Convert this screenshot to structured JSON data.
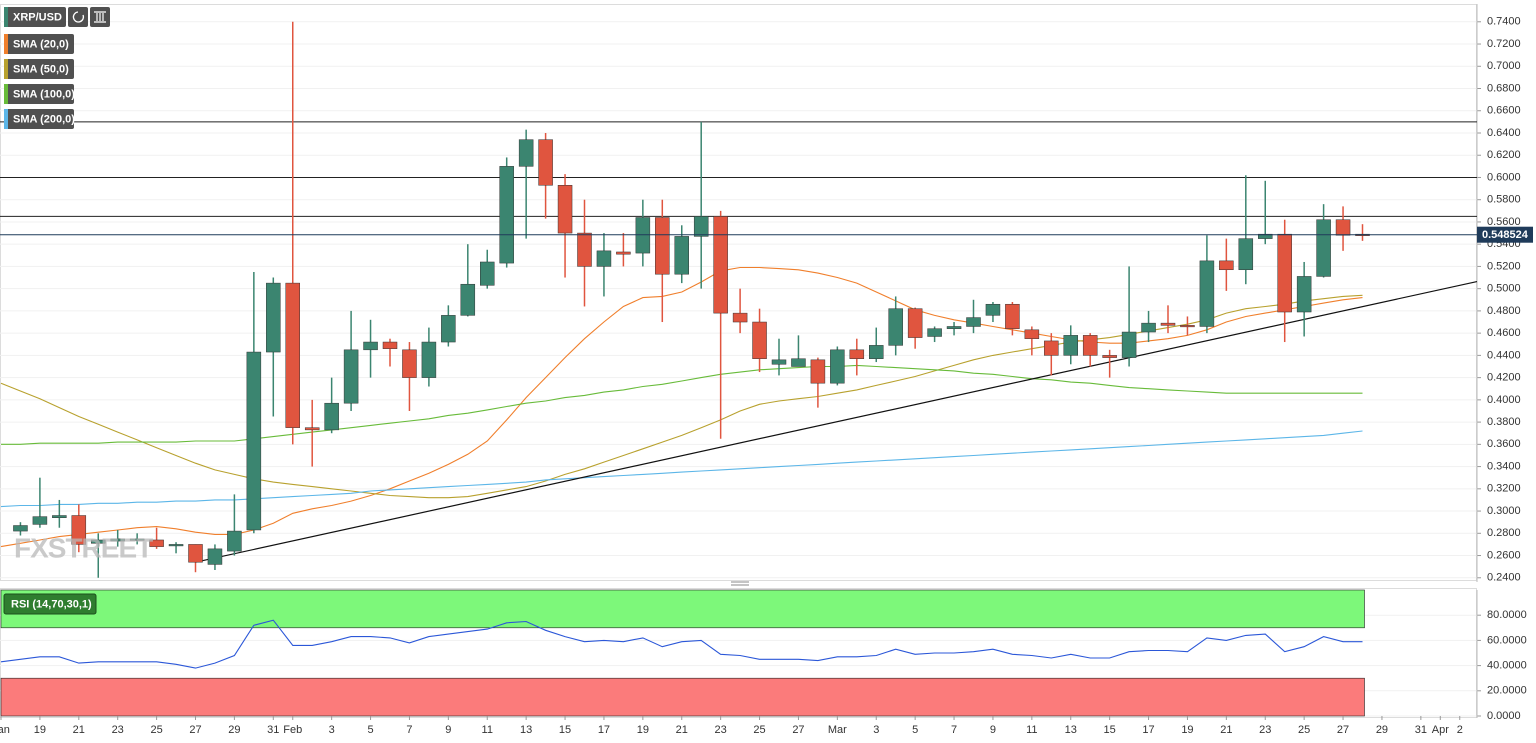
{
  "chart_data": [
    {
      "type": "candlestick",
      "title": "XRP/USD",
      "categories": [
        "Jan",
        null,
        "19",
        null,
        "21",
        null,
        "23",
        null,
        "25",
        null,
        "27",
        null,
        "29",
        null,
        "31",
        "Feb",
        null,
        "3",
        null,
        "5",
        null,
        "7",
        null,
        "9",
        null,
        "11",
        null,
        "13",
        null,
        "15",
        null,
        "17",
        null,
        "19",
        null,
        "21",
        null,
        "23",
        null,
        "25",
        null,
        "27",
        null,
        "Mar",
        null,
        "3",
        null,
        "5",
        null,
        "7",
        null,
        "9",
        null,
        "11",
        null,
        "13",
        null,
        "15",
        null,
        "17",
        null,
        "19",
        null,
        "21",
        null,
        "23",
        null,
        "25",
        null,
        "27",
        null,
        "29",
        null,
        "31",
        "Apr",
        "2"
      ],
      "open": [
        null,
        0.282,
        0.288,
        0.294,
        0.296,
        0.271,
        0.273,
        0.274,
        0.274,
        0.269,
        0.27,
        0.252,
        0.264,
        0.283,
        0.443,
        0.505,
        0.375,
        0.373,
        0.397,
        0.445,
        0.452,
        0.445,
        0.42,
        0.452,
        0.476,
        0.503,
        0.523,
        0.61,
        0.634,
        0.593,
        0.55,
        0.52,
        0.533,
        0.532,
        0.564,
        0.513,
        0.547,
        0.565,
        0.478,
        0.47,
        0.432,
        0.43,
        0.436,
        0.415,
        0.445,
        0.437,
        0.449,
        0.482,
        0.457,
        0.464,
        0.466,
        0.476,
        0.486,
        0.463,
        0.453,
        0.44,
        0.458,
        0.44,
        0.438,
        0.461,
        0.469,
        0.467,
        0.466,
        0.525,
        0.517,
        0.545,
        0.549,
        0.479,
        0.511,
        0.562,
        0.549,
        null,
        null,
        null,
        null,
        null
      ],
      "high": [
        null,
        0.29,
        0.33,
        0.31,
        0.306,
        0.28,
        0.283,
        0.28,
        0.285,
        0.272,
        0.27,
        0.27,
        0.315,
        0.515,
        0.51,
        0.74,
        0.4,
        0.42,
        0.48,
        0.472,
        0.455,
        0.452,
        0.465,
        0.485,
        0.54,
        0.535,
        0.618,
        0.643,
        0.64,
        0.603,
        0.58,
        0.55,
        0.55,
        0.58,
        0.58,
        0.557,
        0.65,
        0.57,
        0.5,
        0.482,
        0.455,
        0.458,
        0.438,
        0.448,
        0.455,
        0.465,
        0.493,
        0.483,
        0.466,
        0.47,
        0.49,
        0.488,
        0.488,
        0.466,
        0.46,
        0.467,
        0.46,
        0.445,
        0.52,
        0.48,
        0.485,
        0.475,
        0.548,
        0.545,
        0.602,
        0.597,
        0.562,
        0.524,
        0.576,
        0.574,
        0.558,
        null,
        null,
        null,
        null,
        null
      ],
      "low": [
        null,
        0.278,
        0.285,
        0.285,
        0.263,
        0.24,
        0.268,
        0.27,
        0.266,
        0.262,
        0.245,
        0.247,
        0.26,
        0.28,
        0.385,
        0.36,
        0.34,
        0.37,
        0.39,
        0.42,
        0.43,
        0.39,
        0.412,
        0.448,
        0.475,
        0.5,
        0.519,
        0.545,
        0.563,
        0.51,
        0.484,
        0.493,
        0.52,
        0.52,
        0.47,
        0.505,
        0.5,
        0.365,
        0.46,
        0.425,
        0.422,
        0.43,
        0.393,
        0.413,
        0.422,
        0.434,
        0.44,
        0.446,
        0.452,
        0.458,
        0.46,
        0.47,
        0.458,
        0.44,
        0.422,
        0.432,
        0.43,
        0.42,
        0.43,
        0.452,
        0.46,
        0.458,
        0.46,
        0.498,
        0.504,
        0.54,
        0.452,
        0.457,
        0.51,
        0.534,
        0.543,
        null,
        null,
        null,
        null,
        null
      ],
      "close": [
        null,
        0.287,
        0.295,
        0.296,
        0.27,
        0.274,
        0.275,
        0.275,
        0.268,
        0.27,
        0.254,
        0.266,
        0.282,
        0.443,
        0.505,
        0.375,
        0.373,
        0.397,
        0.445,
        0.452,
        0.446,
        0.42,
        0.452,
        0.476,
        0.504,
        0.524,
        0.61,
        0.634,
        0.593,
        0.55,
        0.52,
        0.534,
        0.531,
        0.564,
        0.513,
        0.547,
        0.565,
        0.478,
        0.47,
        0.437,
        0.436,
        0.437,
        0.415,
        0.445,
        0.437,
        0.449,
        0.482,
        0.456,
        0.464,
        0.466,
        0.474,
        0.486,
        0.464,
        0.455,
        0.44,
        0.458,
        0.44,
        0.438,
        0.461,
        0.469,
        0.467,
        0.466,
        0.525,
        0.517,
        0.545,
        0.549,
        0.479,
        0.511,
        0.562,
        0.548,
        0.548,
        null,
        null,
        null,
        null,
        null
      ],
      "up_color": "#3b8570",
      "down_color": "#e0553f",
      "series": [
        {
          "name": "SMA (20,0)",
          "color": "#f07f2c",
          "values": [
            0.268,
            0.271,
            0.274,
            0.277,
            0.279,
            0.281,
            0.283,
            0.285,
            0.286,
            0.284,
            0.281,
            0.279,
            0.279,
            0.283,
            0.289,
            0.298,
            0.302,
            0.305,
            0.309,
            0.314,
            0.32,
            0.327,
            0.334,
            0.342,
            0.351,
            0.363,
            0.382,
            0.402,
            0.42,
            0.438,
            0.455,
            0.47,
            0.484,
            0.492,
            0.493,
            0.497,
            0.506,
            0.516,
            0.519,
            0.519,
            0.518,
            0.517,
            0.514,
            0.51,
            0.505,
            0.497,
            0.489,
            0.481,
            0.476,
            0.472,
            0.469,
            0.466,
            0.463,
            0.46,
            0.457,
            0.454,
            0.452,
            0.451,
            0.451,
            0.453,
            0.455,
            0.458,
            0.463,
            0.47,
            0.475,
            0.478,
            0.481,
            0.484,
            0.487,
            0.49,
            0.492,
            null,
            null,
            null,
            null,
            null
          ]
        },
        {
          "name": "SMA (50,0)",
          "color": "#b8a12e",
          "values": [
            0.415,
            0.408,
            0.401,
            0.393,
            0.385,
            0.378,
            0.371,
            0.364,
            0.357,
            0.35,
            0.343,
            0.337,
            0.333,
            0.329,
            0.326,
            0.324,
            0.322,
            0.32,
            0.318,
            0.316,
            0.314,
            0.313,
            0.312,
            0.312,
            0.313,
            0.316,
            0.319,
            0.322,
            0.327,
            0.333,
            0.338,
            0.344,
            0.35,
            0.356,
            0.362,
            0.368,
            0.375,
            0.382,
            0.39,
            0.396,
            0.399,
            0.401,
            0.403,
            0.406,
            0.409,
            0.413,
            0.417,
            0.421,
            0.426,
            0.431,
            0.436,
            0.44,
            0.443,
            0.446,
            0.449,
            0.452,
            0.454,
            0.456,
            0.459,
            0.462,
            0.465,
            0.468,
            0.472,
            0.478,
            0.482,
            0.484,
            0.486,
            0.489,
            0.491,
            0.493,
            0.494,
            null,
            null,
            null,
            null,
            null
          ]
        },
        {
          "name": "SMA (100,0)",
          "color": "#68bb3a",
          "values": [
            0.36,
            0.36,
            0.361,
            0.361,
            0.361,
            0.361,
            0.362,
            0.362,
            0.362,
            0.362,
            0.363,
            0.363,
            0.363,
            0.365,
            0.367,
            0.369,
            0.371,
            0.373,
            0.375,
            0.377,
            0.379,
            0.381,
            0.383,
            0.386,
            0.388,
            0.391,
            0.394,
            0.397,
            0.399,
            0.402,
            0.404,
            0.407,
            0.409,
            0.412,
            0.414,
            0.417,
            0.42,
            0.423,
            0.425,
            0.427,
            0.428,
            0.429,
            0.43,
            0.43,
            0.431,
            0.43,
            0.429,
            0.428,
            0.427,
            0.426,
            0.424,
            0.423,
            0.421,
            0.419,
            0.418,
            0.416,
            0.415,
            0.413,
            0.411,
            0.41,
            0.409,
            0.408,
            0.407,
            0.406,
            0.406,
            0.406,
            0.406,
            0.406,
            0.406,
            0.406,
            0.406,
            null,
            null,
            null,
            null,
            null
          ]
        },
        {
          "name": "SMA (200,0)",
          "color": "#5cb6e8",
          "values": [
            0.304,
            0.305,
            0.305,
            0.306,
            0.306,
            0.307,
            0.307,
            0.308,
            0.308,
            0.309,
            0.309,
            0.31,
            0.31,
            0.311,
            0.312,
            0.313,
            0.314,
            0.315,
            0.316,
            0.318,
            0.319,
            0.32,
            0.321,
            0.322,
            0.323,
            0.324,
            0.325,
            0.326,
            0.328,
            0.329,
            0.33,
            0.331,
            0.332,
            0.333,
            0.334,
            0.335,
            0.336,
            0.337,
            0.338,
            0.339,
            0.34,
            0.341,
            0.342,
            0.343,
            0.344,
            0.345,
            0.346,
            0.347,
            0.348,
            0.349,
            0.35,
            0.351,
            0.352,
            0.353,
            0.354,
            0.355,
            0.356,
            0.357,
            0.358,
            0.359,
            0.36,
            0.361,
            0.362,
            0.363,
            0.364,
            0.365,
            0.366,
            0.367,
            0.368,
            0.37,
            0.372,
            null,
            null,
            null,
            null,
            null
          ]
        }
      ],
      "levels": [
        0.65,
        0.6,
        0.565
      ],
      "last_price": 0.548524,
      "trendline": {
        "from_index": 10,
        "from_value": 0.254,
        "to_index": 75,
        "to_value": 0.503
      },
      "ylim": [
        0.238,
        0.756
      ],
      "yticks": [
        {
          "value": 0.24,
          "label": "0.2400"
        },
        {
          "value": 0.26,
          "label": "0.2600"
        },
        {
          "value": 0.28,
          "label": "0.2800"
        },
        {
          "value": 0.3,
          "label": "0.3000"
        },
        {
          "value": 0.32,
          "label": "0.3200"
        },
        {
          "value": 0.34,
          "label": "0.3400"
        },
        {
          "value": 0.36,
          "label": "0.3600"
        },
        {
          "value": 0.38,
          "label": "0.3800"
        },
        {
          "value": 0.4,
          "label": "0.4000"
        },
        {
          "value": 0.42,
          "label": "0.4200"
        },
        {
          "value": 0.44,
          "label": "0.4400"
        },
        {
          "value": 0.46,
          "label": "0.4600"
        },
        {
          "value": 0.48,
          "label": "0.4800"
        },
        {
          "value": 0.5,
          "label": "0.5000"
        },
        {
          "value": 0.52,
          "label": "0.5200"
        },
        {
          "value": 0.54,
          "label": "0.5400"
        },
        {
          "value": 0.56,
          "label": "0.5600"
        },
        {
          "value": 0.58,
          "label": "0.5800"
        },
        {
          "value": 0.6,
          "label": "0.6000"
        },
        {
          "value": 0.62,
          "label": "0.6200"
        },
        {
          "value": 0.64,
          "label": "0.6400"
        },
        {
          "value": 0.66,
          "label": "0.6600"
        },
        {
          "value": 0.68,
          "label": "0.6800"
        },
        {
          "value": 0.7,
          "label": "0.7000"
        },
        {
          "value": 0.72,
          "label": "0.7200"
        },
        {
          "value": 0.74,
          "label": "0.7400"
        }
      ],
      "grid": true
    },
    {
      "type": "line",
      "series": [
        {
          "name": "RSI (14,70,30,1)",
          "color": "#2b57d8",
          "values": [
            43,
            45,
            47,
            47,
            42,
            43,
            43,
            43,
            43,
            41,
            38,
            42,
            48,
            72,
            76,
            56,
            56,
            59,
            63,
            63,
            62,
            58,
            63,
            65,
            67,
            69,
            74,
            75,
            68,
            63,
            59,
            60,
            59,
            62,
            55,
            59,
            60,
            49,
            48,
            45,
            45,
            45,
            44,
            47,
            47,
            48,
            53,
            49,
            50,
            50,
            51,
            53,
            49,
            48,
            46,
            49,
            46,
            46,
            51,
            52,
            52,
            51,
            62,
            60,
            64,
            65,
            51,
            55,
            63,
            59,
            59,
            null,
            null,
            null,
            null,
            null
          ]
        }
      ],
      "zones": [
        {
          "from": 70,
          "to": 100,
          "color": "#7df87a"
        },
        {
          "from": 0,
          "to": 30,
          "color": "#fb7b7b"
        }
      ],
      "ylim": [
        0,
        100
      ],
      "yticks": [
        {
          "value": 0,
          "label": "0.0000"
        },
        {
          "value": 20,
          "label": "20.0000"
        },
        {
          "value": 40,
          "label": "40.0000"
        },
        {
          "value": 60,
          "label": "60.0000"
        },
        {
          "value": 80,
          "label": "80.0000"
        }
      ],
      "grid": true
    }
  ],
  "watermark": "FXSTREET"
}
